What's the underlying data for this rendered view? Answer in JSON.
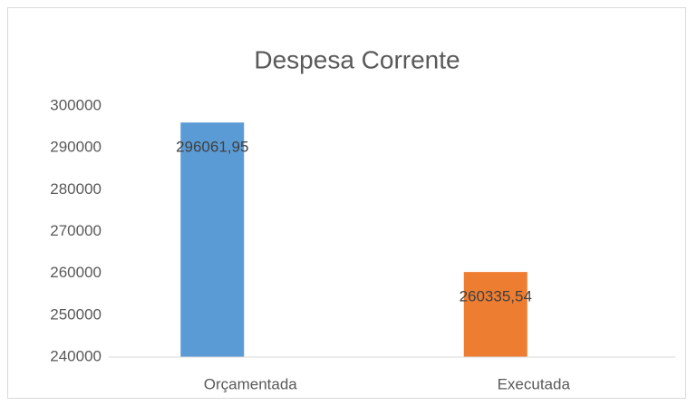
{
  "chart_data": {
    "type": "bar",
    "title": "Despesa Corrente",
    "categories": [
      "Orçamentada",
      "Executada"
    ],
    "values": [
      296061.95,
      260335.54
    ],
    "value_labels": [
      "296061,95",
      "260335,54"
    ],
    "colors": [
      "#5b9bd5",
      "#ed7d31"
    ],
    "ylim": [
      240000,
      300000
    ],
    "yticks": [
      240000,
      250000,
      260000,
      270000,
      280000,
      290000,
      300000
    ],
    "grid": false
  }
}
